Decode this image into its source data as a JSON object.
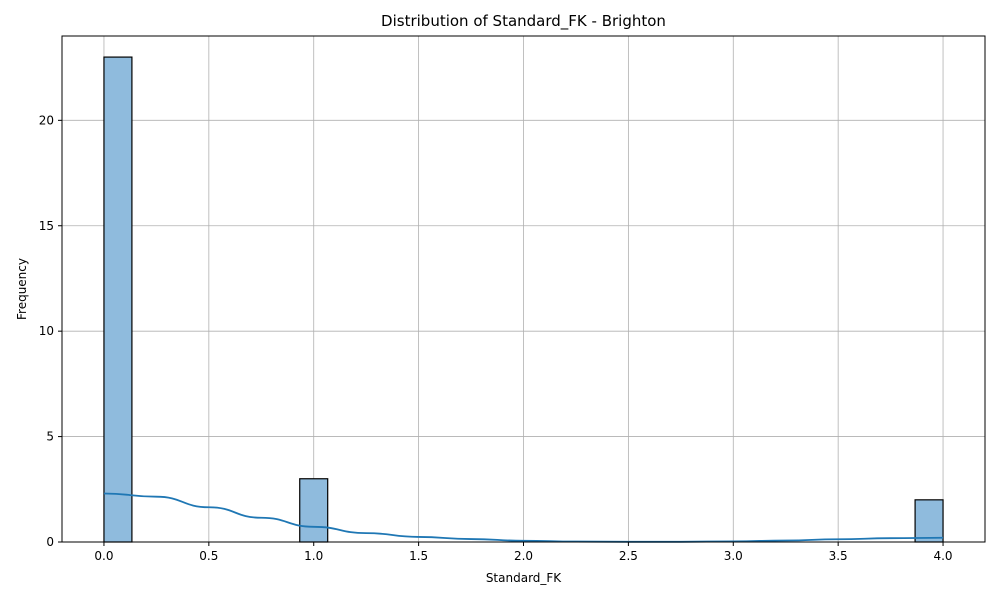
{
  "chart_data": {
    "type": "bar",
    "subtype": "histogram",
    "title": "Distribution of Standard_FK - Brighton",
    "xlabel": "Standard_FK",
    "ylabel": "Frequency",
    "xlim": [
      -0.2,
      4.2
    ],
    "ylim": [
      0,
      24
    ],
    "bin_width": 0.1333,
    "bins": [
      {
        "x": 0.0,
        "count": 23
      },
      {
        "x": 0.9333,
        "count": 3
      },
      {
        "x": 3.8667,
        "count": 2
      }
    ],
    "xticks": [
      0.0,
      0.5,
      1.0,
      1.5,
      2.0,
      2.5,
      3.0,
      3.5,
      4.0
    ],
    "xtick_labels": [
      "0.0",
      "0.5",
      "1.0",
      "1.5",
      "2.0",
      "2.5",
      "3.0",
      "3.5",
      "4.0"
    ],
    "yticks": [
      0,
      5,
      10,
      15,
      20
    ],
    "ytick_labels": [
      "0",
      "5",
      "10",
      "15",
      "20"
    ],
    "kde": {
      "x": [
        0.0,
        0.25,
        0.5,
        0.75,
        1.0,
        1.25,
        1.5,
        1.75,
        2.0,
        2.25,
        2.5,
        2.75,
        3.0,
        3.25,
        3.5,
        3.75,
        4.0
      ],
      "y": [
        2.3,
        2.15,
        1.65,
        1.15,
        0.72,
        0.42,
        0.24,
        0.14,
        0.06,
        0.02,
        0.01,
        0.01,
        0.03,
        0.07,
        0.13,
        0.18,
        0.2
      ]
    },
    "grid": true,
    "colors": {
      "bar_fill": "#8fbbdd",
      "bar_edge": "#000000",
      "kde_line": "#1f77b4",
      "grid": "#b0b0b0"
    }
  }
}
